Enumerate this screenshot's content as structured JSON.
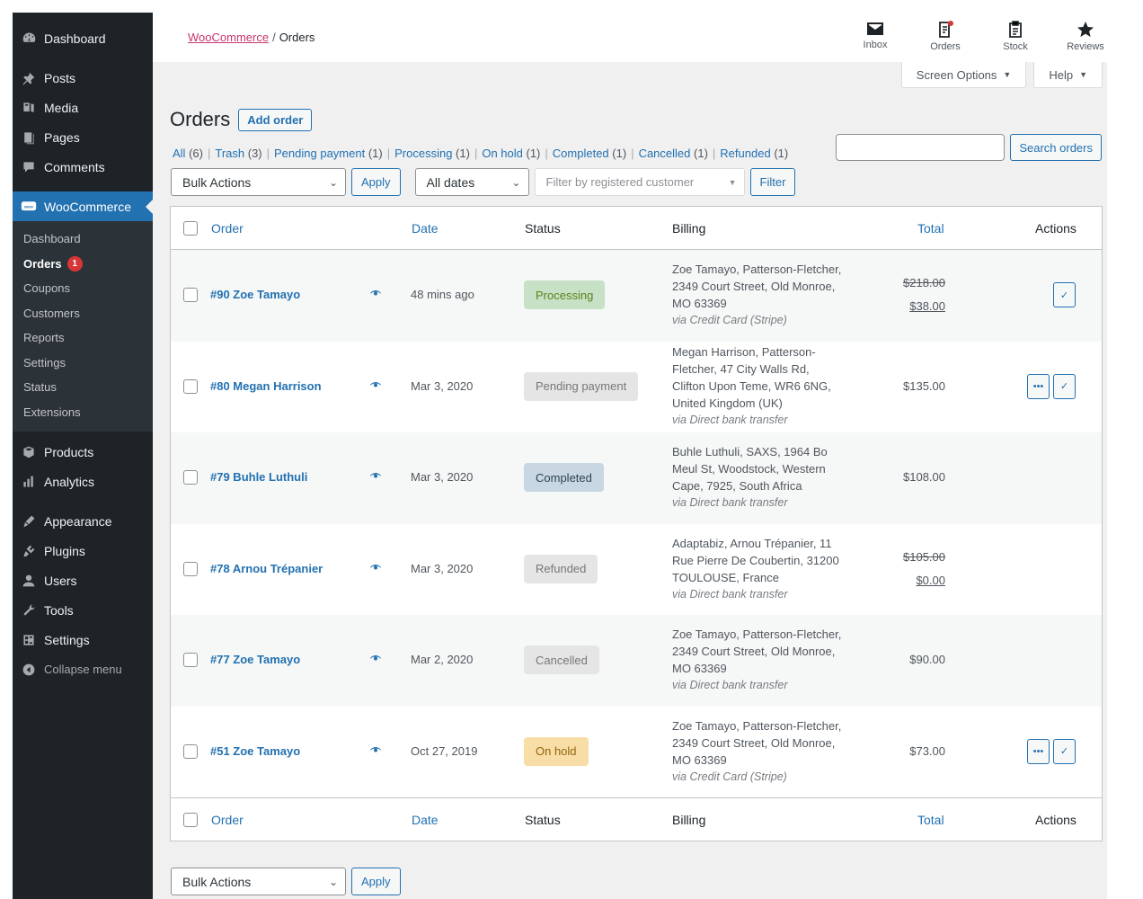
{
  "sidebar": {
    "top": {
      "label": "Dashboard",
      "icon": "dashboard-icon"
    },
    "items": [
      {
        "label": "Posts",
        "icon": "pin-icon"
      },
      {
        "label": "Media",
        "icon": "media-icon"
      },
      {
        "label": "Pages",
        "icon": "pages-icon"
      },
      {
        "label": "Comments",
        "icon": "comments-icon"
      }
    ],
    "woocommerce": {
      "label": "WooCommerce",
      "icon": "woo-icon"
    },
    "woo_sub": [
      {
        "label": "Dashboard"
      },
      {
        "label": "Orders",
        "badge": "1"
      },
      {
        "label": "Coupons"
      },
      {
        "label": "Customers"
      },
      {
        "label": "Reports"
      },
      {
        "label": "Settings"
      },
      {
        "label": "Status"
      },
      {
        "label": "Extensions"
      }
    ],
    "items2": [
      {
        "label": "Products",
        "icon": "products-icon"
      },
      {
        "label": "Analytics",
        "icon": "analytics-icon"
      },
      {
        "label": "Appearance",
        "icon": "appearance-icon"
      },
      {
        "label": "Plugins",
        "icon": "plugins-icon"
      },
      {
        "label": "Users",
        "icon": "users-icon"
      },
      {
        "label": "Tools",
        "icon": "tools-icon"
      },
      {
        "label": "Settings",
        "icon": "settings-icon"
      }
    ],
    "collapse": "Collapse menu"
  },
  "header": {
    "breadcrumb_link": "WooCommerce",
    "breadcrumb_sep": "/",
    "breadcrumb_current": "Orders",
    "activity": [
      {
        "label": "Inbox",
        "icon": "inbox-icon"
      },
      {
        "label": "Orders",
        "icon": "orders-icon"
      },
      {
        "label": "Stock",
        "icon": "stock-icon"
      },
      {
        "label": "Reviews",
        "icon": "star-icon"
      }
    ]
  },
  "screen_options": "Screen Options",
  "help": "Help",
  "page": {
    "title": "Orders",
    "add_button": "Add order"
  },
  "views": [
    {
      "label": "All",
      "count": "(6)"
    },
    {
      "label": "Trash",
      "count": "(3)"
    },
    {
      "label": "Pending payment",
      "count": "(1)"
    },
    {
      "label": "Processing",
      "count": "(1)"
    },
    {
      "label": "On hold",
      "count": "(1)"
    },
    {
      "label": "Completed",
      "count": "(1)"
    },
    {
      "label": "Cancelled",
      "count": "(1)"
    },
    {
      "label": "Refunded",
      "count": "(1)"
    }
  ],
  "search": {
    "value": "",
    "button": "Search orders"
  },
  "filters": {
    "bulk_actions": "Bulk Actions",
    "apply": "Apply",
    "dates": "All dates",
    "customer_placeholder": "Filter by registered customer",
    "filter": "Filter"
  },
  "columns": {
    "order": "Order",
    "date": "Date",
    "status": "Status",
    "billing": "Billing",
    "total": "Total",
    "actions": "Actions"
  },
  "orders": [
    {
      "order": "#90 Zoe Tamayo",
      "date": "48 mins ago",
      "status": "Processing",
      "billing": [
        "Zoe Tamayo, Patterson-Fletcher,",
        "2349 Court Street, Old Monroe,",
        "MO 63369"
      ],
      "via": "via Credit Card (Stripe)",
      "total_old": "$218.00",
      "total": "$38.00"
    },
    {
      "order": "#80 Megan Harrison",
      "date": "Mar 3, 2020",
      "status": "Pending payment",
      "billing": [
        "Megan Harrison, Patterson-",
        "Fletcher, 47 City Walls Rd,",
        "Clifton Upon Teme, WR6 6NG,",
        "United Kingdom (UK)"
      ],
      "via": "via Direct bank transfer",
      "total_old": "",
      "total": "$135.00"
    },
    {
      "order": "#79 Buhle Luthuli",
      "date": "Mar 3, 2020",
      "status": "Completed",
      "billing": [
        "Buhle Luthuli, SAXS, 1964 Bo",
        "Meul St, Woodstock, Western",
        "Cape, 7925, South Africa"
      ],
      "via": "via Direct bank transfer",
      "total_old": "",
      "total": "$108.00"
    },
    {
      "order": "#78 Arnou Trépanier",
      "date": "Mar 3, 2020",
      "status": "Refunded",
      "billing": [
        "Adaptabiz, Arnou Trépanier, 11",
        "Rue Pierre De Coubertin, 31200",
        "TOULOUSE, France"
      ],
      "via": "via Direct bank transfer",
      "total_old": "$105.00",
      "total": "$0.00"
    },
    {
      "order": "#77 Zoe Tamayo",
      "date": "Mar 2, 2020",
      "status": "Cancelled",
      "billing": [
        "Zoe Tamayo, Patterson-Fletcher,",
        "2349 Court Street, Old Monroe,",
        "MO 63369"
      ],
      "via": "via Direct bank transfer",
      "total_old": "",
      "total": "$90.00"
    },
    {
      "order": "#51 Zoe Tamayo",
      "date": "Oct 27, 2019",
      "status": "On hold",
      "billing": [
        "Zoe Tamayo, Patterson-Fletcher,",
        "2349 Court Street, Old Monroe,",
        "MO 63369"
      ],
      "via": "via Credit Card (Stripe)",
      "total_old": "",
      "total": "$73.00"
    }
  ],
  "status_colors": {
    "Processing": {
      "bg": "#c6e1c6",
      "fg": "#5b841b"
    },
    "Pending payment": {
      "bg": "#e5e5e5",
      "fg": "#777777"
    },
    "Completed": {
      "bg": "#c8d7e1",
      "fg": "#2e4453"
    },
    "Refunded": {
      "bg": "#e5e5e5",
      "fg": "#777777"
    },
    "Cancelled": {
      "bg": "#e5e5e5",
      "fg": "#777777"
    },
    "On hold": {
      "bg": "#f8dda7",
      "fg": "#94660c"
    }
  }
}
